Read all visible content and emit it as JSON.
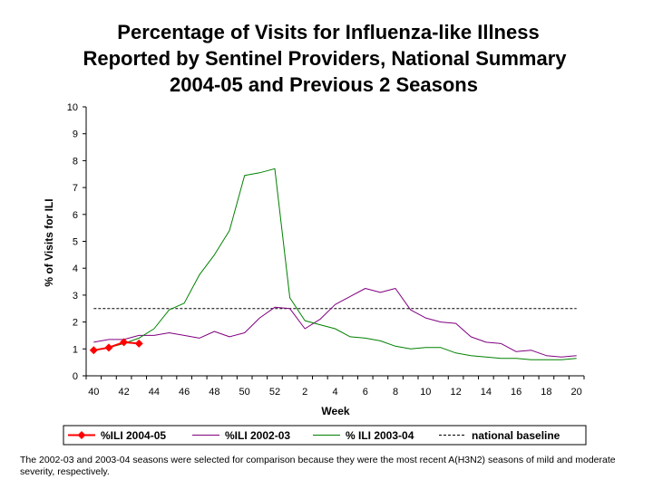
{
  "chart_data": {
    "type": "line",
    "title_lines": [
      "Percentage of Visits for Influenza-like Illness",
      "Reported by Sentinel Providers, National Summary",
      "2004-05 and Previous 2 Seasons"
    ],
    "xlabel": "Week",
    "ylabel": "% of Visits for ILI",
    "ylim": [
      0,
      10
    ],
    "yticks": [
      0,
      1,
      2,
      3,
      4,
      5,
      6,
      7,
      8,
      9,
      10
    ],
    "weeks": [
      40,
      41,
      42,
      43,
      44,
      45,
      46,
      47,
      48,
      49,
      50,
      51,
      52,
      1,
      2,
      3,
      4,
      5,
      6,
      7,
      8,
      9,
      10,
      11,
      12,
      13,
      14,
      15,
      16,
      17,
      18,
      19,
      20
    ],
    "xtick_labels": [
      "40",
      "42",
      "44",
      "46",
      "48",
      "50",
      "52",
      "2",
      "4",
      "6",
      "8",
      "10",
      "12",
      "14",
      "16",
      "18",
      "20"
    ],
    "baseline": 2.5,
    "baseline_label": "national baseline",
    "series": [
      {
        "name": "%ILI 2004-05",
        "color": "#ff0000",
        "marker": "diamond",
        "values": [
          0.95,
          1.05,
          1.25,
          1.2
        ]
      },
      {
        "name": "%ILI 2002-03",
        "color": "#800080",
        "marker": "none",
        "values": [
          1.25,
          1.35,
          1.35,
          1.5,
          1.5,
          1.6,
          1.5,
          1.4,
          1.65,
          1.45,
          1.6,
          2.15,
          2.55,
          2.5,
          1.75,
          2.1,
          2.65,
          2.95,
          3.25,
          3.1,
          3.25,
          2.45,
          2.15,
          2.0,
          1.95,
          1.45,
          1.25,
          1.2,
          0.9,
          0.95,
          0.75,
          0.7,
          0.75
        ]
      },
      {
        "name": "% ILI 2003-04",
        "color": "#008000",
        "marker": "none",
        "values": [
          0.95,
          1.05,
          1.2,
          1.4,
          1.75,
          2.45,
          2.7,
          3.75,
          4.5,
          5.4,
          7.45,
          7.55,
          7.7,
          2.9,
          2.05,
          1.9,
          1.75,
          1.45,
          1.4,
          1.3,
          1.1,
          1.0,
          1.05,
          1.05,
          0.85,
          0.75,
          0.7,
          0.65,
          0.65,
          0.6,
          0.6,
          0.6,
          0.65
        ]
      }
    ],
    "legend": [
      "%ILI 2004-05",
      "%ILI 2002-03",
      "% ILI 2003-04",
      "national baseline"
    ]
  },
  "footnote": "The 2002-03 and 2003-04 seasons were selected for comparison because they were the most recent A(H3N2) seasons of mild and moderate severity, respectively."
}
